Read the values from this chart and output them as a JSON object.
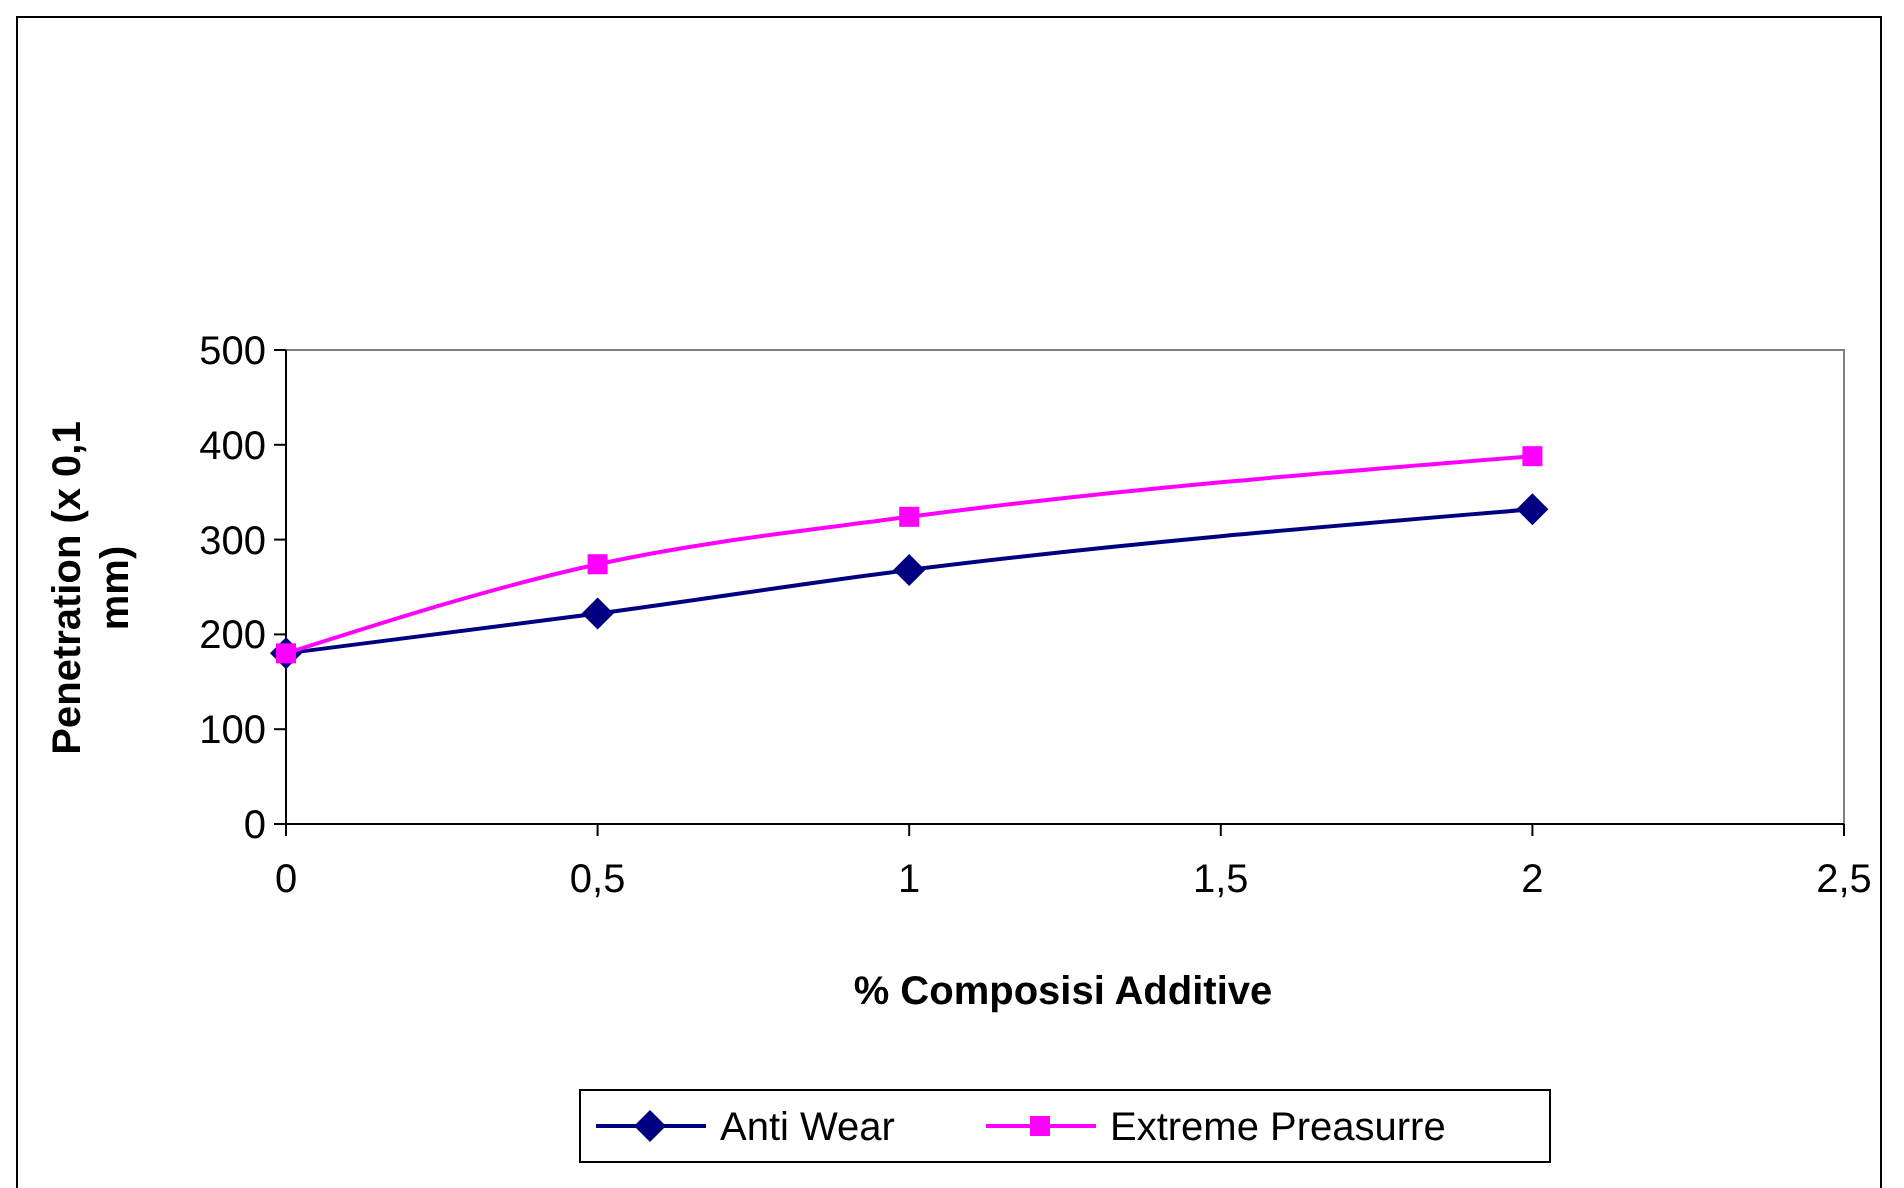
{
  "chart_data": {
    "type": "line",
    "xlabel": "% Composisi Additive",
    "ylabel": "Penetration (x 0,1 mm)",
    "x": [
      0,
      0.5,
      1,
      2
    ],
    "series": [
      {
        "name": "Anti Wear",
        "color": "#000080",
        "marker": "diamond",
        "values": [
          180,
          222,
          268,
          332
        ]
      },
      {
        "name": "Extreme Preasurre",
        "color": "#ff00ff",
        "marker": "square",
        "values": [
          180,
          274,
          324,
          388
        ]
      }
    ],
    "xlim": [
      0,
      2.5
    ],
    "xticks": [
      0,
      {
        "value": 0.5,
        "label": "0,5"
      },
      1,
      {
        "value": 1.5,
        "label": "1,5"
      },
      2,
      {
        "value": 2.5,
        "label": "2,5"
      }
    ],
    "ylim": [
      0,
      500
    ],
    "yticks": [
      0,
      100,
      200,
      300,
      400,
      500
    ],
    "grid": false,
    "legend": "bottom"
  }
}
